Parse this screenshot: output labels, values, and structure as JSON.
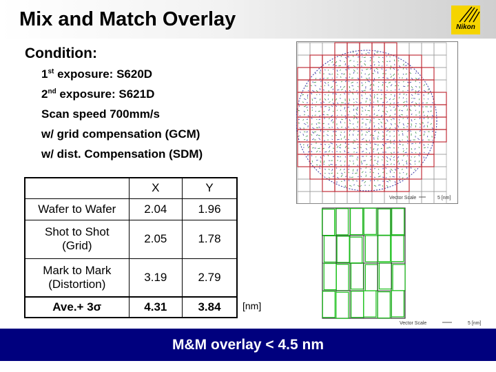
{
  "title": "Mix and Match Overlay",
  "logo": {
    "text": "Nikon"
  },
  "condition": {
    "heading": "Condition:",
    "lines": [
      {
        "prefix": "1",
        "sup": "st",
        "text": " exposure:  S620D"
      },
      {
        "prefix": "2",
        "sup": "nd",
        "text": " exposure: S621D"
      },
      {
        "text": "Scan speed   700mm/s"
      },
      {
        "text": "w/ grid compensation (GCM)"
      },
      {
        "text": "w/ dist. Compensation (SDM)"
      }
    ]
  },
  "table": {
    "header": [
      "",
      "X",
      "Y"
    ],
    "rows": [
      {
        "label": "Wafer to Wafer",
        "x": "2.04",
        "y": "1.96"
      },
      {
        "label_line1": "Shot to Shot",
        "label_line2": "(Grid)",
        "x": "2.05",
        "y": "1.78"
      },
      {
        "label_line1": "Mark to Mark",
        "label_line2": "(Distortion)",
        "x": "3.19",
        "y": "2.79"
      },
      {
        "label": "Ave.+ 3σ",
        "x": "4.31",
        "y": "3.84"
      }
    ],
    "unit": "[nm]"
  },
  "maps": [
    {
      "scale_label": "Vector Scale",
      "scale_value": "5 [nm]"
    },
    {
      "scale_label": "Vector Scale",
      "scale_value": "5 [nm]"
    }
  ],
  "colors": {
    "banner": "#00007e",
    "grid_red": "#c0303a",
    "grid_green": "#19c019",
    "vectors": "#2a8a3a",
    "circle": "#3030a0",
    "logo": "#f5d400"
  },
  "footer": "M&M overlay < 4.5 nm"
}
